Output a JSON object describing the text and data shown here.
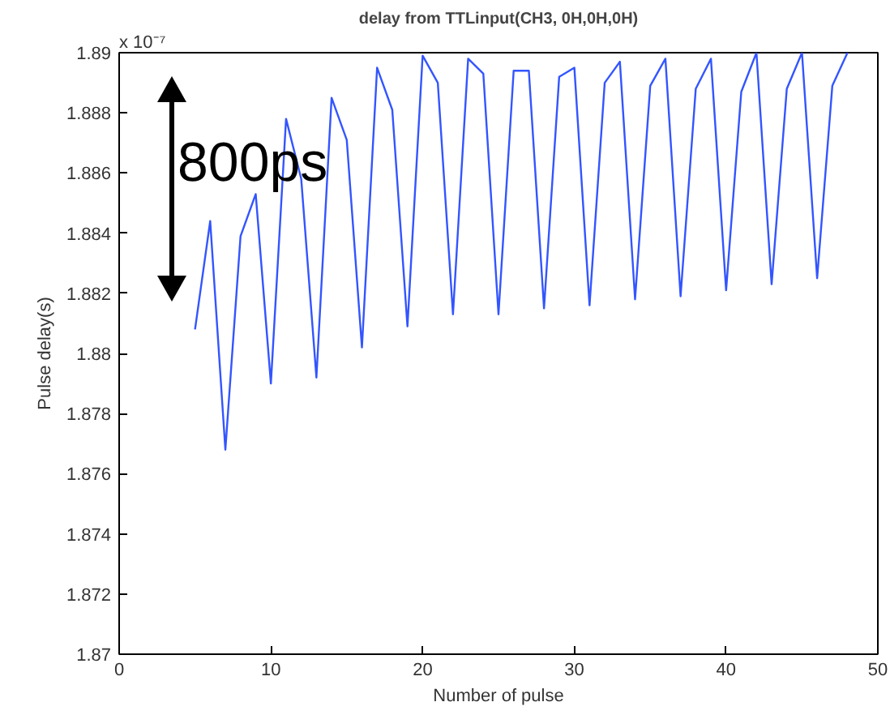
{
  "chart_data": {
    "type": "line",
    "title": "delay from TTLinput(CH3, 0H,0H,0H)",
    "xlabel": "Number of pulse",
    "ylabel": "Pulse delay(s)",
    "x": [
      5,
      6,
      7,
      8,
      9,
      10,
      11,
      12,
      13,
      14,
      15,
      16,
      17,
      18,
      19,
      20,
      21,
      22,
      23,
      24,
      25,
      26,
      27,
      28,
      29,
      30,
      31,
      32,
      33,
      34,
      35,
      36,
      37,
      38,
      39,
      40,
      41,
      42,
      43,
      44,
      45,
      46,
      47,
      48
    ],
    "series": [
      {
        "color": "#3355ff",
        "values": [
          1.8808,
          1.8844,
          1.8768,
          1.8839,
          1.8853,
          1.879,
          1.8878,
          1.8858,
          1.8792,
          1.8885,
          1.8871,
          1.8802,
          1.8895,
          1.8881,
          1.8809,
          1.8899,
          1.889,
          1.8813,
          1.8898,
          1.8893,
          1.8813,
          1.8894,
          1.8894,
          1.8815,
          1.8892,
          1.8895,
          1.8816,
          1.889,
          1.8897,
          1.8818,
          1.8889,
          1.8898,
          1.8819,
          1.8888,
          1.8898,
          1.8821,
          1.8887,
          1.89,
          1.8823,
          1.8888,
          1.89,
          1.8825,
          1.8889,
          1.89
        ]
      }
    ],
    "xlim": [
      0,
      50
    ],
    "xticks": [
      0,
      10,
      20,
      30,
      40,
      50
    ],
    "ylim": [
      1.87,
      1.89
    ],
    "yticks": [
      1.87,
      1.872,
      1.874,
      1.876,
      1.878,
      1.88,
      1.882,
      1.884,
      1.886,
      1.888,
      1.89
    ],
    "annotations": [
      "x 10⁻⁷",
      "800ps"
    ],
    "grid": false,
    "marker": "none",
    "line_style": "solid"
  }
}
